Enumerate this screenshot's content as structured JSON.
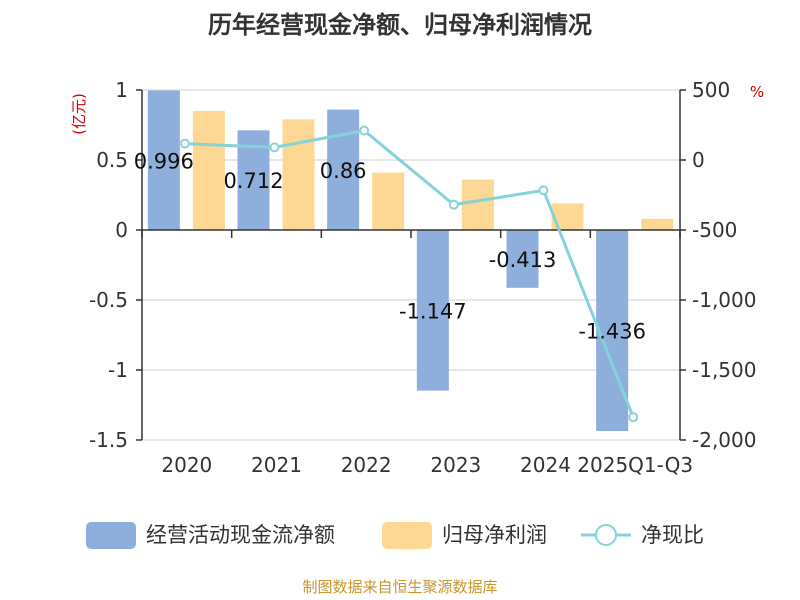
{
  "chart_data": {
    "type": "bar",
    "title": "历年经营现金净额、归母净利润情况",
    "categories": [
      "2020",
      "2021",
      "2022",
      "2023",
      "2024",
      "2025Q1-Q3"
    ],
    "left_axis": {
      "unit": "(亿元)",
      "ylim": [
        -1.5,
        1
      ],
      "ticks": [
        1,
        0.5,
        0,
        -0.5,
        -1,
        -1.5
      ],
      "tick_labels": [
        "1",
        "0.5",
        "0",
        "-0.5",
        "-1",
        "-1.5"
      ]
    },
    "right_axis": {
      "unit": "%",
      "ylim": [
        -2000,
        500
      ],
      "ticks": [
        500,
        0,
        -500,
        -1000,
        -1500,
        -2000
      ],
      "tick_labels": [
        "500",
        "0",
        "-500",
        "-1,000",
        "-1,500",
        "-2,000"
      ]
    },
    "series": [
      {
        "name": "经营活动现金流净额",
        "axis": "left",
        "type": "bar",
        "color": "#8eaedc",
        "values": [
          0.996,
          0.712,
          0.86,
          -1.147,
          -0.413,
          -1.436
        ],
        "labels": [
          "0.996",
          "0.712",
          "0.86",
          "-1.147",
          "-0.413",
          "-1.436"
        ]
      },
      {
        "name": "归母净利润",
        "axis": "left",
        "type": "bar",
        "color": "#fdd794",
        "values": [
          0.85,
          0.79,
          0.41,
          0.36,
          0.19,
          0.08
        ]
      },
      {
        "name": "净现比",
        "axis": "right",
        "type": "line",
        "color": "#85d3d9",
        "values": [
          117,
          90,
          210,
          -319,
          -217,
          -1837
        ]
      }
    ],
    "grid": true,
    "legend_position": "bottom"
  },
  "source": "制图数据来自恒生聚源数据库"
}
